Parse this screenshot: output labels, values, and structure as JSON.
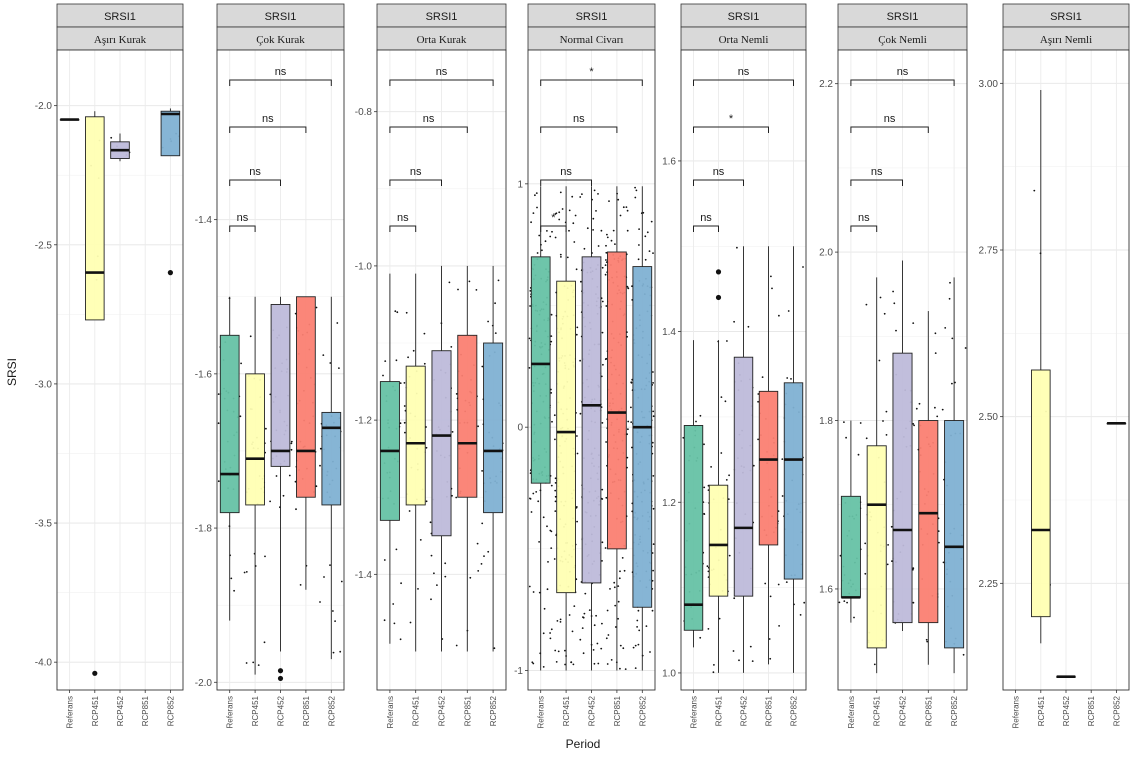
{
  "chart_data": {
    "type": "boxplot",
    "xlabel": "Period",
    "ylabel": "SRSI",
    "categories": [
      "Referans",
      "RCP451",
      "RCP452",
      "RCP851",
      "RCP852"
    ],
    "colors": {
      "Referans": "#66c2a5",
      "RCP451": "#ffffb3",
      "RCP452": "#bebada",
      "RCP851": "#fb8072",
      "RCP852": "#80b1d3"
    },
    "grid": true,
    "legend": "none",
    "panels": [
      {
        "strip_top": "SRSI1",
        "strip_bottom": "Aşırı Kurak",
        "ylim": [
          -4.1,
          -1.8
        ],
        "yticks": [
          "-2.0",
          "-2.5",
          "-3.0",
          "-3.5",
          "-4.0"
        ],
        "ytick_values": [
          -2.0,
          -2.5,
          -3.0,
          -3.5,
          -4.0
        ],
        "boxes": [
          {
            "cat": "Referans",
            "min": -2.05,
            "q1": -2.05,
            "median": -2.05,
            "q3": -2.05,
            "max": -2.05
          },
          {
            "cat": "RCP451",
            "min": -2.77,
            "q1": -2.77,
            "median": -2.6,
            "q3": -2.04,
            "max": -2.02
          },
          {
            "cat": "RCP452",
            "min": -2.2,
            "q1": -2.19,
            "median": -2.16,
            "q3": -2.13,
            "max": -2.1
          },
          {
            "cat": "RCP852",
            "min": -2.18,
            "q1": -2.18,
            "median": -2.03,
            "q3": -2.02,
            "max": -2.01
          }
        ],
        "outliers": [
          {
            "cat": "RCP451",
            "y": -4.04
          },
          {
            "cat": "RCP852",
            "y": -2.6
          }
        ],
        "comparisons": []
      },
      {
        "strip_top": "SRSI1",
        "strip_bottom": "Çok Kurak",
        "ylim": [
          -2.01,
          -1.18
        ],
        "yticks": [
          "-1.4",
          "-1.6",
          "-1.8",
          "-2.0"
        ],
        "ytick_values": [
          -1.4,
          -1.6,
          -1.8,
          -2.0
        ],
        "boxes": [
          {
            "cat": "Referans",
            "min": -1.92,
            "q1": -1.78,
            "median": -1.73,
            "q3": -1.55,
            "max": -1.5
          },
          {
            "cat": "RCP451",
            "min": -1.99,
            "q1": -1.77,
            "median": -1.71,
            "q3": -1.6,
            "max": -1.5
          },
          {
            "cat": "RCP452",
            "min": -1.96,
            "q1": -1.72,
            "median": -1.7,
            "q3": -1.51,
            "max": -1.5
          },
          {
            "cat": "RCP851",
            "min": -1.88,
            "q1": -1.76,
            "median": -1.7,
            "q3": -1.5,
            "max": -1.5
          },
          {
            "cat": "RCP852",
            "min": -1.97,
            "q1": -1.77,
            "median": -1.67,
            "q3": -1.65,
            "max": -1.5
          }
        ],
        "outliers": [
          {
            "cat": "RCP452",
            "y": -1.985
          },
          {
            "cat": "RCP452",
            "y": -1.995
          }
        ],
        "comparisons": [
          {
            "from": "Referans",
            "to": "RCP451",
            "label": "ns"
          },
          {
            "from": "Referans",
            "to": "RCP452",
            "label": "ns"
          },
          {
            "from": "Referans",
            "to": "RCP851",
            "label": "ns"
          },
          {
            "from": "Referans",
            "to": "RCP852",
            "label": "ns"
          }
        ]
      },
      {
        "strip_top": "SRSI1",
        "strip_bottom": "Orta Kurak",
        "ylim": [
          -1.55,
          -0.72
        ],
        "yticks": [
          "-0.8",
          "-1.0",
          "-1.2",
          "-1.4"
        ],
        "ytick_values": [
          -0.8,
          -1.0,
          -1.2,
          -1.4
        ],
        "boxes": [
          {
            "cat": "Referans",
            "min": -1.49,
            "q1": -1.33,
            "median": -1.24,
            "q3": -1.15,
            "max": -1.01
          },
          {
            "cat": "RCP451",
            "min": -1.5,
            "q1": -1.31,
            "median": -1.23,
            "q3": -1.13,
            "max": -1.01
          },
          {
            "cat": "RCP452",
            "min": -1.5,
            "q1": -1.35,
            "median": -1.22,
            "q3": -1.11,
            "max": -1.0
          },
          {
            "cat": "RCP851",
            "min": -1.5,
            "q1": -1.3,
            "median": -1.23,
            "q3": -1.09,
            "max": -1.0
          },
          {
            "cat": "RCP852",
            "min": -1.5,
            "q1": -1.32,
            "median": -1.24,
            "q3": -1.1,
            "max": -1.0
          }
        ],
        "outliers": [],
        "comparisons": [
          {
            "from": "Referans",
            "to": "RCP451",
            "label": "ns"
          },
          {
            "from": "Referans",
            "to": "RCP452",
            "label": "ns"
          },
          {
            "from": "Referans",
            "to": "RCP851",
            "label": "ns"
          },
          {
            "from": "Referans",
            "to": "RCP852",
            "label": "ns"
          }
        ]
      },
      {
        "strip_top": "SRSI1",
        "strip_bottom": "Normal Civarı",
        "ylim": [
          -1.08,
          1.55
        ],
        "yticks": [
          "1",
          "0",
          "-1"
        ],
        "ytick_values": [
          1,
          0,
          -1
        ],
        "boxes": [
          {
            "cat": "Referans",
            "min": -1.0,
            "q1": -0.23,
            "median": 0.26,
            "q3": 0.7,
            "max": 0.99
          },
          {
            "cat": "RCP451",
            "min": -1.0,
            "q1": -0.68,
            "median": -0.02,
            "q3": 0.6,
            "max": 0.99
          },
          {
            "cat": "RCP452",
            "min": -1.0,
            "q1": -0.64,
            "median": 0.09,
            "q3": 0.7,
            "max": 0.99
          },
          {
            "cat": "RCP851",
            "min": -1.0,
            "q1": -0.5,
            "median": 0.06,
            "q3": 0.72,
            "max": 0.99
          },
          {
            "cat": "RCP852",
            "min": -1.0,
            "q1": -0.74,
            "median": 0.0,
            "q3": 0.66,
            "max": 0.99
          }
        ],
        "outliers": [],
        "comparisons": [
          {
            "from": "Referans",
            "to": "RCP451",
            "label": "*"
          },
          {
            "from": "Referans",
            "to": "RCP452",
            "label": "ns"
          },
          {
            "from": "Referans",
            "to": "RCP851",
            "label": "ns"
          },
          {
            "from": "Referans",
            "to": "RCP852",
            "label": "*"
          }
        ]
      },
      {
        "strip_top": "SRSI1",
        "strip_bottom": "Orta Nemli",
        "ylim": [
          0.98,
          1.73
        ],
        "yticks": [
          "1.6",
          "1.4",
          "1.2",
          "1.0"
        ],
        "ytick_values": [
          1.6,
          1.4,
          1.2,
          1.0
        ],
        "boxes": [
          {
            "cat": "Referans",
            "min": 1.03,
            "q1": 1.05,
            "median": 1.08,
            "q3": 1.29,
            "max": 1.39
          },
          {
            "cat": "RCP451",
            "min": 1.0,
            "q1": 1.09,
            "median": 1.15,
            "q3": 1.22,
            "max": 1.39
          },
          {
            "cat": "RCP452",
            "min": 1.0,
            "q1": 1.09,
            "median": 1.17,
            "q3": 1.37,
            "max": 1.5
          },
          {
            "cat": "RCP851",
            "min": 1.01,
            "q1": 1.15,
            "median": 1.25,
            "q3": 1.33,
            "max": 1.5
          },
          {
            "cat": "RCP852",
            "min": 1.0,
            "q1": 1.11,
            "median": 1.25,
            "q3": 1.34,
            "max": 1.5
          }
        ],
        "outliers": [
          {
            "cat": "RCP451",
            "y": 1.47
          },
          {
            "cat": "RCP451",
            "y": 1.44
          }
        ],
        "comparisons": [
          {
            "from": "Referans",
            "to": "RCP451",
            "label": "ns"
          },
          {
            "from": "Referans",
            "to": "RCP452",
            "label": "ns"
          },
          {
            "from": "Referans",
            "to": "RCP851",
            "label": "*"
          },
          {
            "from": "Referans",
            "to": "RCP852",
            "label": "ns"
          }
        ]
      },
      {
        "strip_top": "SRSI1",
        "strip_bottom": "Çok Nemli",
        "ylim": [
          1.48,
          2.24
        ],
        "yticks": [
          "2.2",
          "2.0",
          "1.8",
          "1.6"
        ],
        "ytick_values": [
          2.2,
          2.0,
          1.8,
          1.6
        ],
        "boxes": [
          {
            "cat": "Referans",
            "min": 1.56,
            "q1": 1.59,
            "median": 1.59,
            "q3": 1.71,
            "max": 1.8
          },
          {
            "cat": "RCP451",
            "min": 1.5,
            "q1": 1.53,
            "median": 1.7,
            "q3": 1.77,
            "max": 1.97
          },
          {
            "cat": "RCP452",
            "min": 1.55,
            "q1": 1.56,
            "median": 1.67,
            "q3": 1.88,
            "max": 1.99
          },
          {
            "cat": "RCP851",
            "min": 1.51,
            "q1": 1.56,
            "median": 1.69,
            "q3": 1.8,
            "max": 1.93
          },
          {
            "cat": "RCP852",
            "min": 1.5,
            "q1": 1.53,
            "median": 1.65,
            "q3": 1.8,
            "max": 1.97
          }
        ],
        "outliers": [],
        "comparisons": [
          {
            "from": "Referans",
            "to": "RCP451",
            "label": "ns"
          },
          {
            "from": "Referans",
            "to": "RCP452",
            "label": "ns"
          },
          {
            "from": "Referans",
            "to": "RCP851",
            "label": "ns"
          },
          {
            "from": "Referans",
            "to": "RCP852",
            "label": "ns"
          }
        ]
      },
      {
        "strip_top": "SRSI1",
        "strip_bottom": "Aşırı Nemli",
        "ylim": [
          2.09,
          3.05
        ],
        "yticks": [
          "3.00",
          "2.75",
          "2.50",
          "2.25"
        ],
        "ytick_values": [
          3.0,
          2.75,
          2.5,
          2.25
        ],
        "boxes": [
          {
            "cat": "RCP451",
            "min": 2.16,
            "q1": 2.2,
            "median": 2.33,
            "q3": 2.57,
            "max": 2.99
          },
          {
            "cat": "RCP452",
            "min": 2.11,
            "q1": 2.11,
            "median": 2.11,
            "q3": 2.11,
            "max": 2.11
          },
          {
            "cat": "RCP852",
            "min": 2.49,
            "q1": 2.49,
            "median": 2.49,
            "q3": 2.49,
            "max": 2.49
          }
        ],
        "outliers": [],
        "comparisons": []
      }
    ]
  }
}
